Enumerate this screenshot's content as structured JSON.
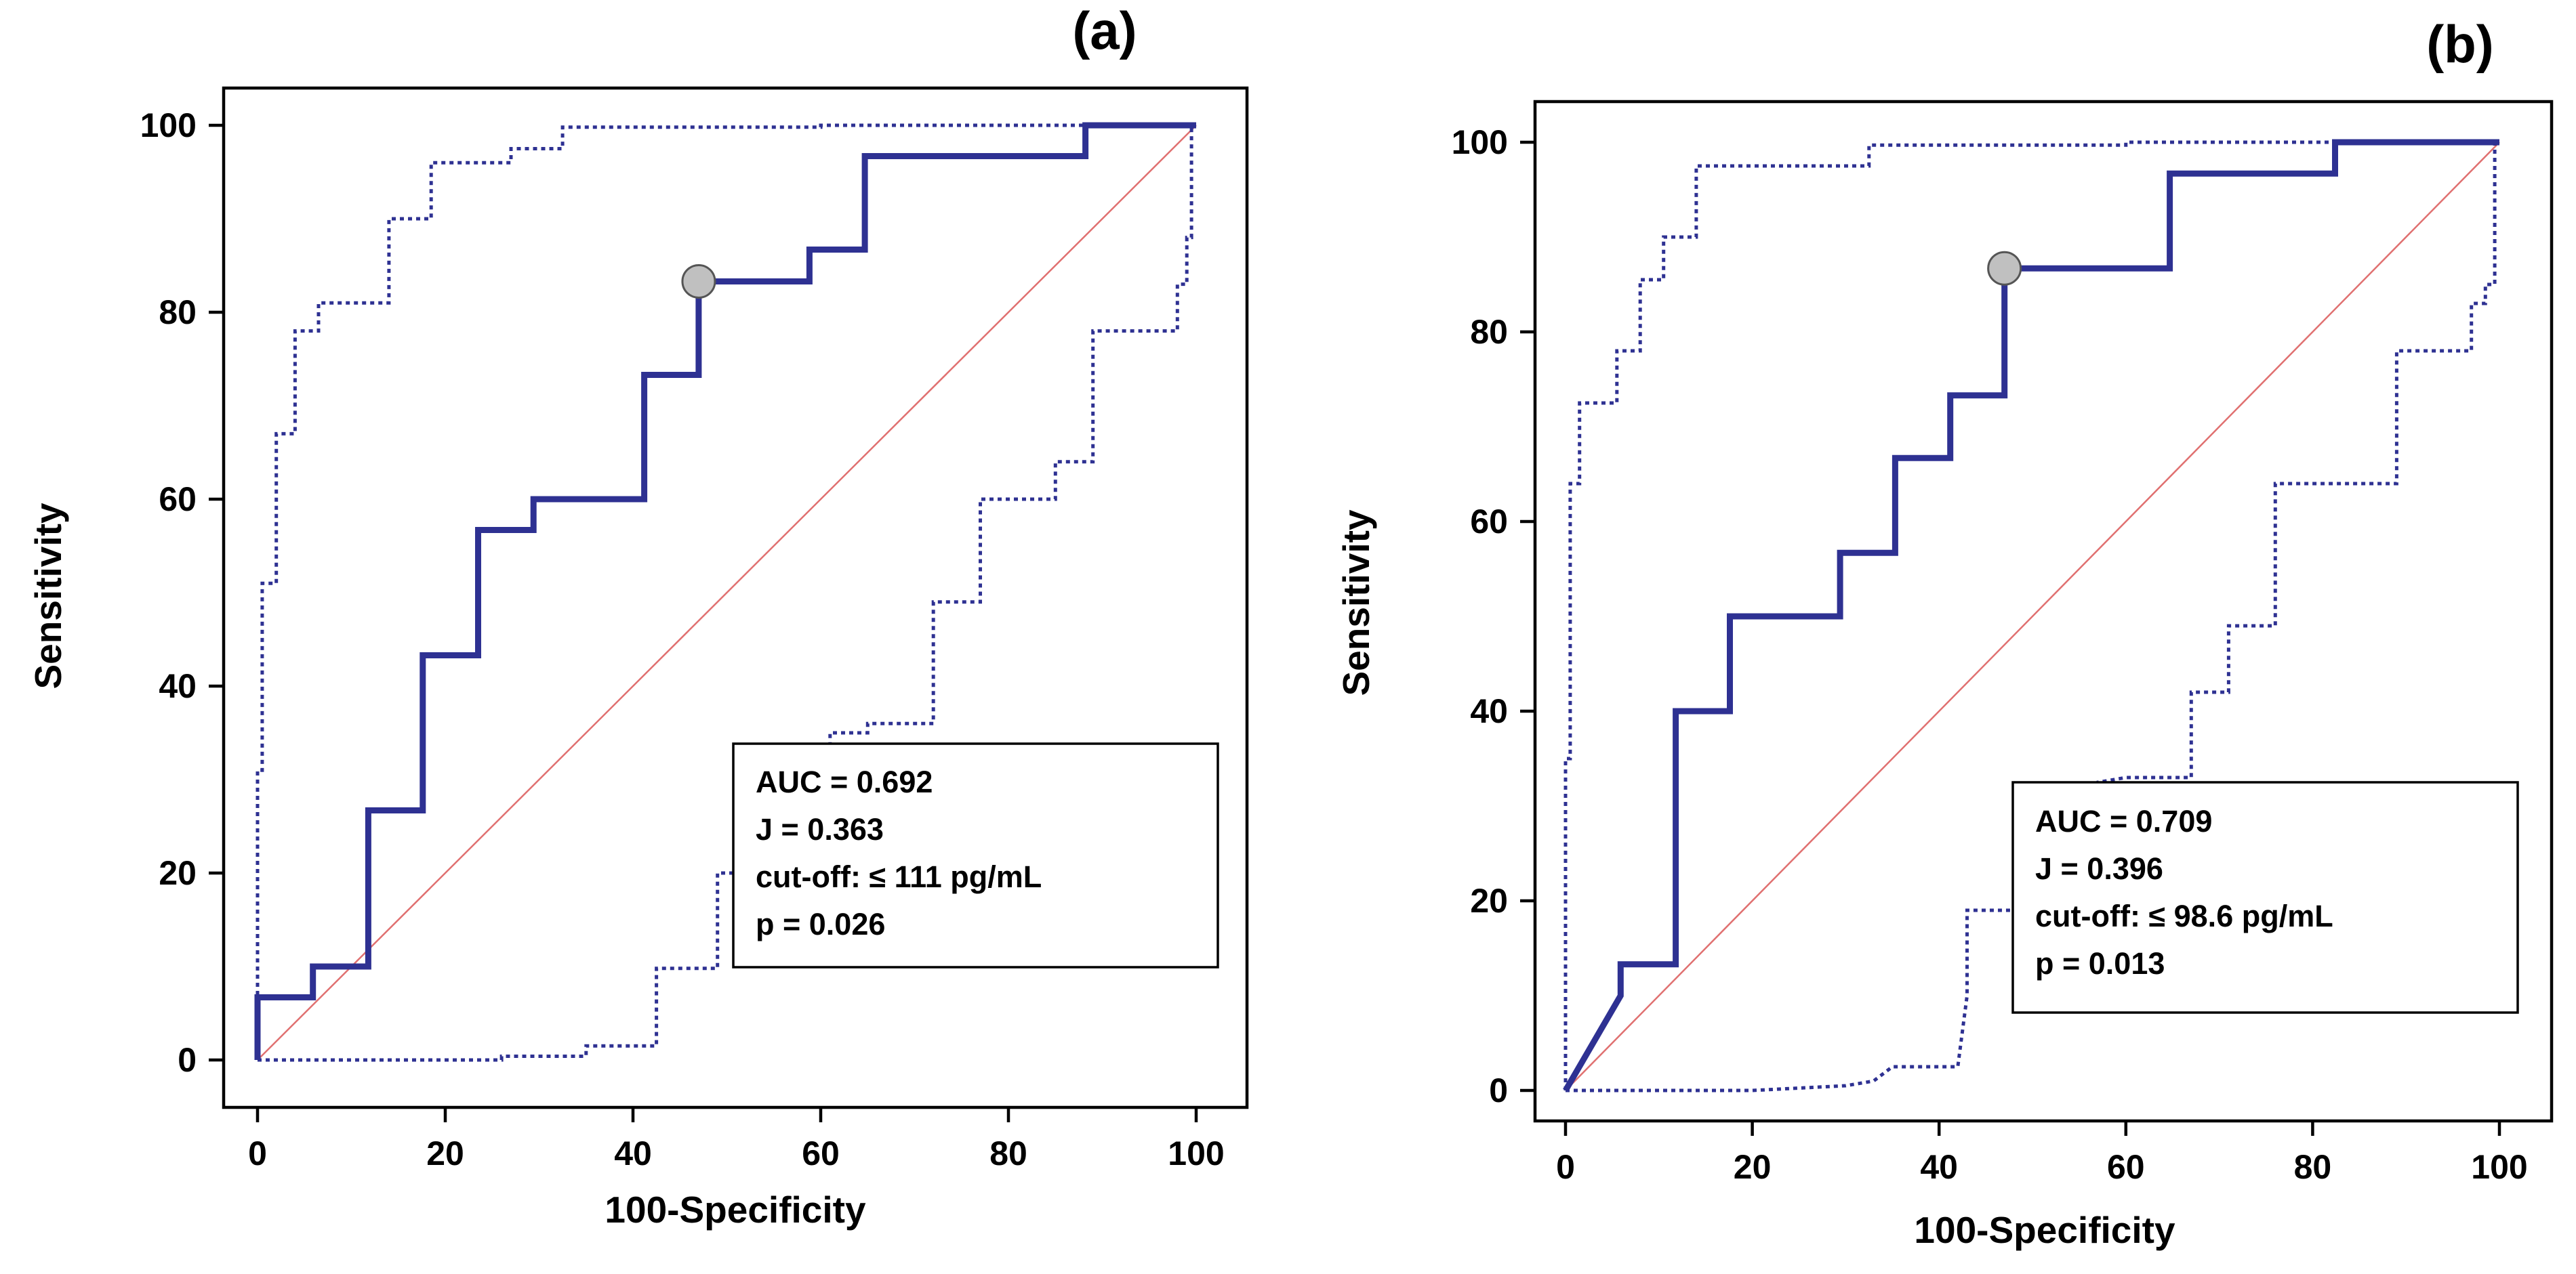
{
  "chart_data": [
    {
      "type": "line",
      "panel_label": "(a)",
      "xlabel": "100-Specificity",
      "ylabel": "Sensitivity",
      "xlim": [
        0,
        100
      ],
      "ylim": [
        0,
        100
      ],
      "x_ticks": [
        0,
        20,
        40,
        60,
        80,
        100
      ],
      "y_ticks": [
        0,
        20,
        40,
        60,
        80,
        100
      ],
      "stats": [
        "AUC = 0.692",
        "J = 0.363",
        "cut-off: ≤ 111 pg/mL",
        "p = 0.026"
      ],
      "cutoff_point": [
        47,
        83.3
      ],
      "series": [
        {
          "name": "ROC curve",
          "style": "solid",
          "points": [
            [
              0,
              0
            ],
            [
              0,
              6.7
            ],
            [
              5.9,
              6.7
            ],
            [
              5.9,
              10
            ],
            [
              11.8,
              10
            ],
            [
              11.8,
              26.7
            ],
            [
              17.6,
              26.7
            ],
            [
              17.6,
              43.3
            ],
            [
              23.5,
              43.3
            ],
            [
              23.5,
              56.7
            ],
            [
              29.4,
              56.7
            ],
            [
              29.4,
              60
            ],
            [
              41.2,
              60
            ],
            [
              41.2,
              73.3
            ],
            [
              47,
              73.3
            ],
            [
              47,
              83.3
            ],
            [
              58.8,
              83.3
            ],
            [
              58.8,
              86.7
            ],
            [
              64.7,
              86.7
            ],
            [
              64.7,
              96.7
            ],
            [
              88.2,
              96.7
            ],
            [
              88.2,
              100
            ],
            [
              100,
              100
            ]
          ]
        },
        {
          "name": "95% CI upper",
          "style": "dotted",
          "points": [
            [
              0,
              0
            ],
            [
              0,
              31
            ],
            [
              0.5,
              31
            ],
            [
              0.5,
              51
            ],
            [
              2,
              51
            ],
            [
              2,
              67
            ],
            [
              4,
              67
            ],
            [
              4,
              78
            ],
            [
              6.5,
              78
            ],
            [
              6.5,
              81
            ],
            [
              14,
              81
            ],
            [
              14,
              90
            ],
            [
              18.5,
              90
            ],
            [
              18.5,
              96
            ],
            [
              27,
              96
            ],
            [
              27,
              97.5
            ],
            [
              32.5,
              97.5
            ],
            [
              32.5,
              99.8
            ],
            [
              60,
              99.8
            ],
            [
              60,
              100
            ],
            [
              99.5,
              100
            ],
            [
              99.5,
              100
            ]
          ]
        },
        {
          "name": "95% CI lower",
          "style": "dotted",
          "points": [
            [
              0,
              0
            ],
            [
              26,
              0
            ],
            [
              26,
              0.4
            ],
            [
              35,
              0.4
            ],
            [
              35,
              1.5
            ],
            [
              42.5,
              1.5
            ],
            [
              42.5,
              9.8
            ],
            [
              49,
              9.8
            ],
            [
              49,
              20
            ],
            [
              61,
              20
            ],
            [
              61,
              35
            ],
            [
              65,
              35
            ],
            [
              65,
              36
            ],
            [
              72,
              36
            ],
            [
              72,
              49
            ],
            [
              77,
              49
            ],
            [
              77,
              60
            ],
            [
              85,
              60
            ],
            [
              85,
              64
            ],
            [
              89,
              64
            ],
            [
              89,
              78
            ],
            [
              98,
              78
            ],
            [
              98,
              83
            ],
            [
              99,
              83
            ],
            [
              99,
              88
            ],
            [
              99.5,
              88
            ],
            [
              99.5,
              100
            ]
          ]
        },
        {
          "name": "Reference line",
          "style": "diagonal",
          "points": [
            [
              0,
              0
            ],
            [
              100,
              100
            ]
          ]
        }
      ]
    },
    {
      "type": "line",
      "panel_label": "(b)",
      "xlabel": "100-Specificity",
      "ylabel": "Sensitivity",
      "xlim": [
        0,
        100
      ],
      "ylim": [
        0,
        100
      ],
      "x_ticks": [
        0,
        20,
        40,
        60,
        80,
        100
      ],
      "y_ticks": [
        0,
        20,
        40,
        60,
        80,
        100
      ],
      "stats": [
        "AUC = 0.709",
        "J = 0.396",
        "cut-off: ≤ 98.6 pg/mL",
        "p = 0.013"
      ],
      "cutoff_point": [
        47,
        86.7
      ],
      "series": [
        {
          "name": "ROC curve",
          "style": "solid",
          "points": [
            [
              0,
              0
            ],
            [
              5.9,
              10
            ],
            [
              5.9,
              13.3
            ],
            [
              11.8,
              13.3
            ],
            [
              11.8,
              40
            ],
            [
              17.6,
              40
            ],
            [
              17.6,
              50
            ],
            [
              29.4,
              50
            ],
            [
              29.4,
              56.7
            ],
            [
              35.3,
              56.7
            ],
            [
              35.3,
              66.7
            ],
            [
              41.2,
              66.7
            ],
            [
              41.2,
              73.3
            ],
            [
              47,
              73.3
            ],
            [
              47,
              86.7
            ],
            [
              64.7,
              86.7
            ],
            [
              64.7,
              96.7
            ],
            [
              82.4,
              96.7
            ],
            [
              82.4,
              100
            ],
            [
              100,
              100
            ]
          ]
        },
        {
          "name": "95% CI upper",
          "style": "dotted",
          "points": [
            [
              0,
              0
            ],
            [
              0,
              35
            ],
            [
              0.5,
              35
            ],
            [
              0.5,
              64
            ],
            [
              1.5,
              64
            ],
            [
              1.5,
              72.5
            ],
            [
              5.5,
              72.5
            ],
            [
              5.5,
              78
            ],
            [
              8,
              78
            ],
            [
              8,
              85.5
            ],
            [
              10.5,
              85.5
            ],
            [
              10.5,
              90
            ],
            [
              14,
              90
            ],
            [
              14,
              97.5
            ],
            [
              32.5,
              97.5
            ],
            [
              32.5,
              99.7
            ],
            [
              60,
              99.7
            ],
            [
              60,
              100
            ],
            [
              100,
              100
            ]
          ]
        },
        {
          "name": "95% CI lower",
          "style": "dotted",
          "points": [
            [
              0,
              0
            ],
            [
              20,
              0
            ],
            [
              30,
              0.5
            ],
            [
              33,
              1
            ],
            [
              35,
              2.5
            ],
            [
              42,
              2.5
            ],
            [
              43,
              10
            ],
            [
              43,
              19
            ],
            [
              52,
              19
            ],
            [
              55,
              25
            ],
            [
              57,
              32.5
            ],
            [
              60,
              33
            ],
            [
              67,
              33
            ],
            [
              67,
              42
            ],
            [
              71,
              42
            ],
            [
              71,
              49
            ],
            [
              76,
              49
            ],
            [
              76,
              64
            ],
            [
              89,
              64
            ],
            [
              89,
              78
            ],
            [
              97,
              78
            ],
            [
              97,
              83
            ],
            [
              98.5,
              83
            ],
            [
              98.5,
              85
            ],
            [
              99.5,
              85
            ],
            [
              99.5,
              100
            ]
          ]
        },
        {
          "name": "Reference line",
          "style": "diagonal",
          "points": [
            [
              0,
              0
            ],
            [
              100,
              100
            ]
          ]
        }
      ]
    }
  ]
}
